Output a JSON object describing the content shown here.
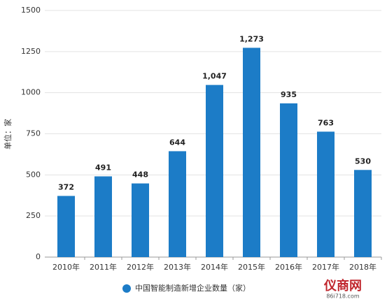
{
  "chart_data": {
    "type": "bar",
    "y_label": "单位：家",
    "categories": [
      "2010年",
      "2011年",
      "2012年",
      "2013年",
      "2014年",
      "2015年",
      "2016年",
      "2017年",
      "2018年"
    ],
    "series": [
      {
        "name": "中国智能制造新增企业数量（家）",
        "color": "#1c7cc7",
        "values": [
          372,
          491,
          448,
          644,
          1047,
          1273,
          935,
          763,
          530
        ],
        "value_labels": [
          "372",
          "491",
          "448",
          "644",
          "1,047",
          "1,273",
          "935",
          "763",
          "530"
        ]
      }
    ],
    "ylim": [
      0,
      1500
    ],
    "yticks": [
      0,
      250,
      500,
      750,
      {
        "value": 1000,
        "label": "1000"
      },
      {
        "value": 1250,
        "label": "1250"
      },
      {
        "value": 1500,
        "label": "1500"
      }
    ],
    "grid": true,
    "legend": "bottom",
    "watermark": {
      "name": "仪商网",
      "url": "86i718.com"
    }
  }
}
